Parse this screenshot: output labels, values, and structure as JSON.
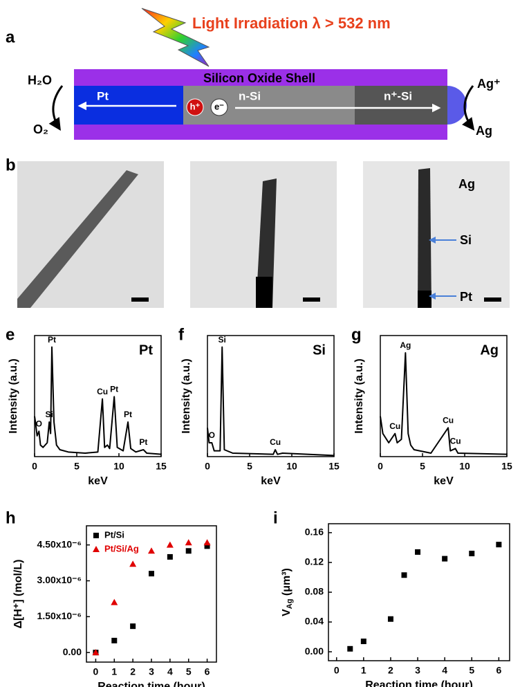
{
  "diagram": {
    "panel": "a",
    "title": "Light Irradiation λ > 532 nm",
    "shell": "Silicon Oxide Shell",
    "segments": [
      "Pt",
      "n-Si",
      "n⁺-Si"
    ],
    "carriers": [
      "h⁺",
      "e⁻"
    ],
    "left": [
      "H₂O",
      "O₂"
    ],
    "right": [
      "Ag⁺",
      "Ag"
    ]
  },
  "tem": {
    "panel": "b",
    "labels": [
      "Ag",
      "Si",
      "Pt"
    ]
  },
  "chart_data": [
    {
      "type": "line",
      "panel": "e",
      "label": "Pt",
      "xlabel": "keV",
      "ylabel": "Intensity (a.u.)",
      "x": [
        0,
        0.1,
        0.3,
        0.52,
        0.7,
        1.0,
        1.5,
        1.74,
        1.9,
        2.05,
        2.3,
        2.6,
        3,
        4,
        6,
        7.5,
        8.04,
        8.3,
        8.64,
        8.9,
        9.44,
        9.8,
        10.5,
        11.07,
        11.4,
        12,
        12.9,
        13.3,
        15
      ],
      "series": [
        {
          "color": "#000000",
          "values": [
            0.35,
            0.3,
            0.18,
            0.22,
            0.1,
            0.08,
            0.12,
            0.3,
            0.2,
            0.95,
            0.3,
            0.1,
            0.06,
            0.04,
            0.03,
            0.04,
            0.5,
            0.08,
            0.1,
            0.07,
            0.52,
            0.08,
            0.05,
            0.3,
            0.07,
            0.04,
            0.06,
            0.03,
            0.02
          ]
        }
      ],
      "annotations": [
        {
          "text": "O",
          "x": 0.52,
          "y": 0.22
        },
        {
          "text": "Si",
          "x": 1.74,
          "y": 0.3
        },
        {
          "text": "Pt",
          "x": 2.05,
          "y": 0.95
        },
        {
          "text": "Cu",
          "x": 8.04,
          "y": 0.5
        },
        {
          "text": "Pt",
          "x": 9.44,
          "y": 0.52
        },
        {
          "text": "Pt",
          "x": 11.07,
          "y": 0.3
        },
        {
          "text": "Pt",
          "x": 12.9,
          "y": 0.06
        }
      ],
      "xlim": [
        0,
        15
      ],
      "xticks": [
        0,
        5,
        10,
        15
      ],
      "ylim": [
        0,
        1.05
      ]
    },
    {
      "type": "line",
      "panel": "f",
      "label": "Si",
      "xlabel": "keV",
      "ylabel": "Intensity (a.u.)",
      "x": [
        0,
        0.2,
        0.52,
        0.8,
        1.5,
        1.74,
        2.0,
        3,
        7.8,
        8.04,
        8.3,
        8.9,
        15
      ],
      "series": [
        {
          "color": "#000000",
          "values": [
            0.25,
            0.12,
            0.12,
            0.05,
            0.05,
            0.95,
            0.06,
            0.03,
            0.02,
            0.06,
            0.02,
            0.03,
            0.01
          ]
        }
      ],
      "annotations": [
        {
          "text": "O",
          "x": 0.52,
          "y": 0.12
        },
        {
          "text": "Si",
          "x": 1.74,
          "y": 0.95
        },
        {
          "text": "Cu",
          "x": 8.04,
          "y": 0.06
        }
      ],
      "xlim": [
        0,
        15
      ],
      "xticks": [
        0,
        5,
        10,
        15
      ],
      "ylim": [
        0,
        1.05
      ]
    },
    {
      "type": "line",
      "panel": "g",
      "label": "Ag",
      "xlabel": "keV",
      "ylabel": "Intensity (a.u.)",
      "x": [
        0,
        0.3,
        1,
        1.74,
        2,
        2.5,
        2.98,
        3.3,
        3.6,
        4,
        6,
        8.04,
        8.3,
        8.9,
        9.2,
        15
      ],
      "series": [
        {
          "color": "#000000",
          "values": [
            0.35,
            0.2,
            0.12,
            0.2,
            0.12,
            0.15,
            0.9,
            0.2,
            0.1,
            0.06,
            0.03,
            0.25,
            0.05,
            0.07,
            0.03,
            0.02
          ]
        }
      ],
      "annotations": [
        {
          "text": "Cu",
          "x": 1.74,
          "y": 0.2
        },
        {
          "text": "Ag",
          "x": 2.98,
          "y": 0.9
        },
        {
          "text": "Cu",
          "x": 8.04,
          "y": 0.25
        },
        {
          "text": "Cu",
          "x": 8.9,
          "y": 0.07
        }
      ],
      "xlim": [
        0,
        15
      ],
      "xticks": [
        0,
        5,
        10,
        15
      ],
      "ylim": [
        0,
        1.05
      ]
    },
    {
      "type": "scatter",
      "panel": "h",
      "xlabel": "Reaction time (hour)",
      "ylabel": [
        "Δ[H⁺] (mol/L)"
      ],
      "x": [
        0,
        1,
        2,
        3,
        4,
        5,
        6
      ],
      "series": [
        {
          "name": "Pt/Si",
          "color": "#000000",
          "marker": "square",
          "values": [
            0,
            5e-07,
            1.1e-06,
            3.3e-06,
            4e-06,
            4.25e-06,
            4.45e-06
          ]
        },
        {
          "name": "Pt/Si/Ag",
          "color": "#e00000",
          "marker": "triangle",
          "values": [
            0,
            2.1e-06,
            3.7e-06,
            4.25e-06,
            4.5e-06,
            4.6e-06,
            4.6e-06
          ]
        }
      ],
      "legend": "upper left",
      "xlim": [
        -0.5,
        6.5
      ],
      "xticks": [
        0,
        1,
        2,
        3,
        4,
        5,
        6
      ],
      "ylim": [
        -4e-07,
        5.3e-06
      ],
      "yticks": [
        {
          "value": 0,
          "label": "0.00"
        },
        {
          "value": 1.5e-06,
          "label": "1.50x10⁻⁶"
        },
        {
          "value": 3e-06,
          "label": "3.00x10⁻⁶"
        },
        {
          "value": 4.5e-06,
          "label": "4.50x10⁻⁶"
        }
      ]
    },
    {
      "type": "scatter",
      "panel": "i",
      "xlabel": "Reaction time (hour)",
      "ylabel": [
        "V",
        "Ag",
        " (μm³)"
      ],
      "x": [
        0.5,
        1,
        2,
        2.5,
        3,
        4,
        5,
        6
      ],
      "series": [
        {
          "color": "#000000",
          "marker": "square",
          "values": [
            0.004,
            0.014,
            0.044,
            0.103,
            0.134,
            0.125,
            0.132,
            0.144
          ]
        }
      ],
      "xlim": [
        -0.3,
        6.4
      ],
      "xticks": [
        0,
        1,
        2,
        3,
        4,
        5,
        6
      ],
      "ylim": [
        -0.012,
        0.172
      ],
      "yticks": [
        {
          "value": 0,
          "label": "0.00"
        },
        0.04,
        0.08,
        0.12,
        0.16
      ]
    }
  ]
}
